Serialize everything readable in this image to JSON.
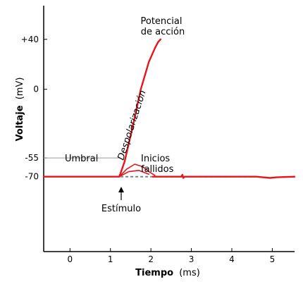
{
  "chart_data": {
    "type": "line",
    "xlabel_bold": "Tiempo",
    "xlabel_unit": "(ms)",
    "ylabel_bold": "Voltaje",
    "ylabel_unit": "(mV)",
    "xlim": [
      -0.65,
      5.55
    ],
    "ylim": [
      -130,
      67
    ],
    "x_ticks": [
      {
        "v": 0,
        "label": "0"
      },
      {
        "v": 1,
        "label": "1"
      },
      {
        "v": 2,
        "label": "2"
      },
      {
        "v": 3,
        "label": "3"
      },
      {
        "v": 4,
        "label": "4"
      },
      {
        "v": 5,
        "label": "5"
      }
    ],
    "y_ticks": [
      {
        "v": 40,
        "label": "+40"
      },
      {
        "v": 0,
        "label": "0"
      },
      {
        "v": -55,
        "label": "-55"
      },
      {
        "v": -70,
        "label": "-70"
      }
    ],
    "threshold": {
      "value": -55,
      "label": "Umbral",
      "color": "#9a9a9a"
    },
    "colors": {
      "trace": "#e8141b",
      "dashed": "#6e8a82",
      "axis": "#000000"
    },
    "series": [
      {
        "role": "action-potential",
        "x": [
          -0.65,
          1.22,
          1.35,
          1.55,
          1.75,
          1.95,
          2.1,
          2.18,
          2.24
        ],
        "y": [
          -70,
          -70,
          -58,
          -30,
          0,
          22,
          33,
          38,
          40
        ]
      },
      {
        "role": "failed-initiation-1",
        "x": [
          1.22,
          1.4,
          1.6,
          1.8,
          1.95,
          2.1
        ],
        "y": [
          -70,
          -64,
          -60,
          -62,
          -66,
          -69
        ]
      },
      {
        "role": "failed-initiation-2",
        "x": [
          1.22,
          1.45,
          1.7,
          1.95
        ],
        "y": [
          -70,
          -66,
          -65,
          -68
        ]
      },
      {
        "role": "baseline-after",
        "x": [
          2.05,
          2.75,
          2.78,
          2.8,
          2.83,
          3.6,
          4.6,
          4.95,
          5.1,
          5.55
        ],
        "y": [
          -70,
          -70,
          -68.5,
          -71,
          -70,
          -70,
          -70,
          -71,
          -70.5,
          -70
        ]
      },
      {
        "role": "dashed-baseline",
        "x": [
          1.25,
          4.55
        ],
        "y": [
          -70,
          -70
        ]
      }
    ],
    "annotations": {
      "action_potential": [
        "Potencial",
        "de acción"
      ],
      "depolarization": "Despolarización",
      "failed": [
        "Inicios",
        "fallidos"
      ],
      "stimulus": "Estímulo"
    }
  }
}
